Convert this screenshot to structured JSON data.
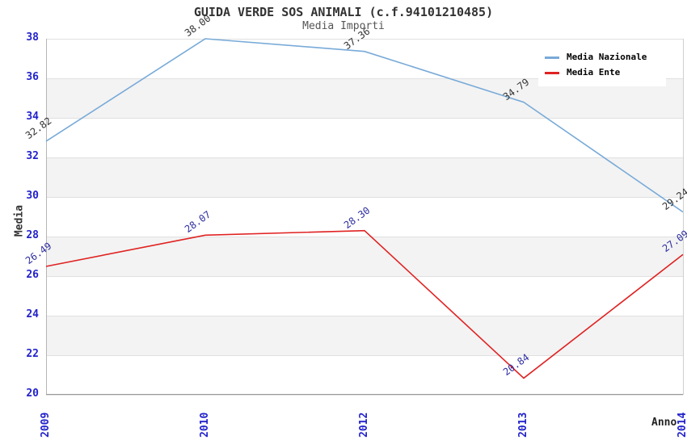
{
  "chart_data": {
    "type": "line",
    "title": "GUIDA VERDE SOS ANIMALI (c.f.94101210485)",
    "subtitle": "Media Importi",
    "xlabel": "Anno",
    "ylabel": "Media",
    "categories": [
      "2009",
      "2010",
      "2012",
      "2013",
      "2014"
    ],
    "series": [
      {
        "name": "Media Nazionale",
        "color": "#78AAD8",
        "label_color": "#333333",
        "values": [
          32.82,
          38.0,
          37.36,
          34.79,
          29.24
        ]
      },
      {
        "name": "Media Ente",
        "color": "#E02222",
        "label_color": "#2D2DA0",
        "values": [
          26.49,
          28.07,
          28.3,
          20.84,
          27.09
        ]
      }
    ],
    "ylim": [
      20,
      38
    ],
    "ytick_step": 2,
    "grid": true,
    "alternating_bands": true,
    "legend_position": "top-right",
    "colors": {
      "tick_label": "#2222CC",
      "band_gray": "#F3F3F3",
      "gridline": "#E0E0E0",
      "title": "#333333",
      "subtitle": "#555555"
    },
    "value_label_decimals": 2
  }
}
